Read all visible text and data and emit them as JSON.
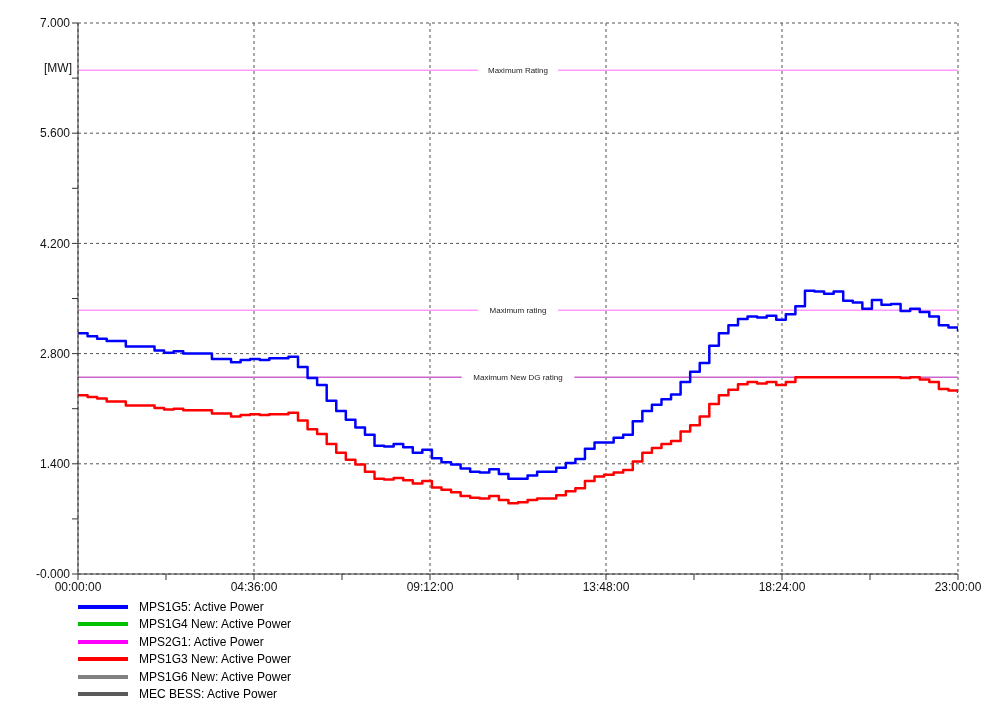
{
  "chart_data": {
    "type": "step",
    "ylabel": "[MW]",
    "xlim": [
      0,
      23
    ],
    "ylim": [
      0,
      7
    ],
    "xticks": [
      {
        "value": 0,
        "label": "00:00:00"
      },
      {
        "value": 2.3,
        "label": null
      },
      {
        "value": 4.6,
        "label": "04:36:00"
      },
      {
        "value": 6.9,
        "label": null
      },
      {
        "value": 9.2,
        "label": "09:12:00"
      },
      {
        "value": 11.5,
        "label": null
      },
      {
        "value": 13.8,
        "label": "13:48:00"
      },
      {
        "value": 16.1,
        "label": null
      },
      {
        "value": 18.4,
        "label": "18:24:00"
      },
      {
        "value": 20.7,
        "label": null
      },
      {
        "value": 23,
        "label": "23:00:00"
      }
    ],
    "yticks": [
      {
        "value": 0,
        "label": "-0.000"
      },
      {
        "value": 0.7,
        "label": null
      },
      {
        "value": 1.4,
        "label": "1.400"
      },
      {
        "value": 2.1,
        "label": null
      },
      {
        "value": 2.8,
        "label": "2.800"
      },
      {
        "value": 3.5,
        "label": null
      },
      {
        "value": 4.2,
        "label": "4.200"
      },
      {
        "value": 4.9,
        "label": null
      },
      {
        "value": 5.6,
        "label": "5.600"
      },
      {
        "value": 6.3,
        "label": null
      },
      {
        "value": 7,
        "label": "7.000"
      }
    ],
    "grid": true,
    "legend": "bottom",
    "line_style": "solid",
    "marker": "none",
    "series": [
      {
        "name": "MPS1G5: Active Power",
        "color": "#0000ff",
        "x": [
          0,
          0.25,
          0.5,
          0.75,
          1.25,
          2,
          2.25,
          2.5,
          2.75,
          3.5,
          4,
          4.25,
          4.5,
          4.75,
          5,
          5.5,
          5.75,
          6,
          6.25,
          6.5,
          6.75,
          7,
          7.25,
          7.5,
          7.75,
          8,
          8.25,
          8.5,
          8.75,
          9,
          9.25,
          9.5,
          9.75,
          10,
          10.25,
          10.5,
          10.75,
          11,
          11.25,
          11.75,
          12,
          12.5,
          12.75,
          13,
          13.25,
          13.5,
          14,
          14.25,
          14.5,
          14.75,
          15,
          15.25,
          15.5,
          15.75,
          16,
          16.25,
          16.5,
          16.75,
          17,
          17.25,
          17.5,
          17.75,
          18,
          18.25,
          18.5,
          18.75,
          19,
          19.25,
          19.5,
          19.75,
          20,
          20.25,
          20.5,
          20.75,
          21,
          21.25,
          21.5,
          21.75,
          22,
          22.25,
          22.5,
          22.75,
          23
        ],
        "values": [
          3.06,
          3.02,
          2.99,
          2.96,
          2.89,
          2.84,
          2.81,
          2.83,
          2.8,
          2.73,
          2.69,
          2.72,
          2.73,
          2.72,
          2.74,
          2.76,
          2.63,
          2.49,
          2.4,
          2.2,
          2.07,
          1.96,
          1.86,
          1.77,
          1.63,
          1.62,
          1.65,
          1.61,
          1.54,
          1.58,
          1.47,
          1.42,
          1.39,
          1.34,
          1.3,
          1.29,
          1.33,
          1.27,
          1.21,
          1.25,
          1.3,
          1.35,
          1.41,
          1.46,
          1.59,
          1.67,
          1.73,
          1.77,
          1.94,
          2.07,
          2.15,
          2.22,
          2.28,
          2.44,
          2.57,
          2.68,
          2.9,
          3.06,
          3.16,
          3.24,
          3.27,
          3.26,
          3.28,
          3.23,
          3.3,
          3.4,
          3.6,
          3.59,
          3.56,
          3.59,
          3.47,
          3.45,
          3.37,
          3.48,
          3.42,
          3.43,
          3.34,
          3.37,
          3.33,
          3.27,
          3.16,
          3.13,
          3.08
        ]
      },
      {
        "name": "MPS1G4 New: Active Power",
        "color": "#00c000"
      },
      {
        "name": "MPS2G1: Active Power",
        "color": "#ff00ff"
      },
      {
        "name": "MPS1G3 New: Active Power",
        "color": "#ff0000",
        "x": [
          0,
          0.25,
          0.5,
          0.75,
          1.25,
          2,
          2.25,
          2.5,
          2.75,
          3.5,
          4,
          4.25,
          4.5,
          4.75,
          5,
          5.5,
          5.75,
          6,
          6.25,
          6.5,
          6.75,
          7,
          7.25,
          7.5,
          7.75,
          8,
          8.25,
          8.5,
          8.75,
          9,
          9.25,
          9.5,
          9.75,
          10,
          10.25,
          10.5,
          10.75,
          11,
          11.25,
          11.5,
          11.75,
          12,
          12.5,
          12.75,
          13,
          13.25,
          13.5,
          13.75,
          14,
          14.25,
          14.5,
          14.75,
          15,
          15.25,
          15.5,
          15.75,
          16,
          16.25,
          16.5,
          16.75,
          17,
          17.25,
          17.5,
          17.75,
          18,
          18.25,
          18.5,
          18.75,
          21.5,
          21.75,
          22,
          22.25,
          22.5,
          22.75,
          23
        ],
        "values": [
          2.27,
          2.25,
          2.23,
          2.19,
          2.14,
          2.11,
          2.09,
          2.1,
          2.08,
          2.04,
          2,
          2.02,
          2.03,
          2.02,
          2.03,
          2.05,
          1.95,
          1.84,
          1.78,
          1.65,
          1.54,
          1.45,
          1.39,
          1.3,
          1.21,
          1.2,
          1.22,
          1.19,
          1.15,
          1.18,
          1.1,
          1.07,
          1.04,
          0.99,
          0.97,
          0.96,
          0.99,
          0.94,
          0.9,
          0.91,
          0.94,
          0.96,
          1,
          1.05,
          1.09,
          1.18,
          1.24,
          1.26,
          1.29,
          1.32,
          1.43,
          1.54,
          1.6,
          1.65,
          1.69,
          1.81,
          1.89,
          2,
          2.16,
          2.27,
          2.34,
          2.41,
          2.44,
          2.42,
          2.44,
          2.4,
          2.44,
          2.5,
          2.49,
          2.5,
          2.47,
          2.44,
          2.35,
          2.33,
          2.3
        ]
      },
      {
        "name": "MPS1G6 New: Active Power",
        "color": "#808080"
      },
      {
        "name": "MEC BESS: Active Power",
        "color": "#5a5a5a"
      }
    ],
    "ref_lines": [
      {
        "axis": "y",
        "value": 6.4,
        "label": "Maximum Rating",
        "color": "#ff99ff",
        "line_style": "solid"
      },
      {
        "axis": "y",
        "value": 3.35,
        "label": "Maximum rating",
        "color": "#ff99ff",
        "line_style": "solid"
      },
      {
        "axis": "y",
        "value": 2.5,
        "label": "Maximum New DG rating",
        "color": "#cc66cc",
        "line_style": "solid"
      }
    ]
  }
}
